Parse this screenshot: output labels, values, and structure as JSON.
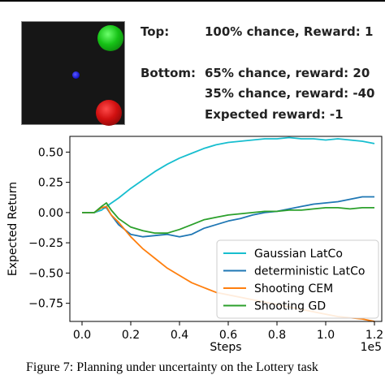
{
  "lottery": {
    "top_label": "Top:",
    "top_desc": "100% chance, Reward: 1",
    "bottom_label": "Bottom:",
    "bottom_line1": "65% chance, reward: 20",
    "bottom_line2": "35% chance, reward: -40",
    "expected": "Expected reward: -1"
  },
  "caption": "Figure 7: Planning under uncertainty on the Lottery task",
  "chart_data": {
    "type": "line",
    "xlabel": "Steps",
    "ylabel": "Expected Return",
    "x_offset_text": "1e5",
    "xlim": [
      -0.05,
      1.23
    ],
    "ylim": [
      -0.9,
      0.63
    ],
    "xticks": [
      0.0,
      0.2,
      0.4,
      0.6,
      0.8,
      1.0,
      1.2
    ],
    "xtick_labels": [
      "0.0",
      "0.2",
      "0.4",
      "0.6",
      "0.8",
      "1.0",
      "1.2"
    ],
    "yticks": [
      0.5,
      0.25,
      0.0,
      -0.25,
      -0.5,
      -0.75
    ],
    "ytick_labels": [
      "0.50",
      "0.25",
      "0.00",
      "−0.25",
      "−0.50",
      "−0.75"
    ],
    "legend_position": "lower-right",
    "grid": false,
    "series": [
      {
        "name": "Gaussian LatCo",
        "color": "#17becf",
        "x": [
          0,
          0.05,
          0.08,
          0.1,
          0.15,
          0.2,
          0.25,
          0.3,
          0.35,
          0.4,
          0.45,
          0.5,
          0.55,
          0.6,
          0.65,
          0.7,
          0.75,
          0.8,
          0.85,
          0.9,
          0.95,
          1.0,
          1.05,
          1.1,
          1.15,
          1.2
        ],
        "y": [
          0,
          0,
          0.02,
          0.05,
          0.12,
          0.2,
          0.27,
          0.34,
          0.4,
          0.45,
          0.49,
          0.53,
          0.56,
          0.58,
          0.59,
          0.6,
          0.61,
          0.61,
          0.62,
          0.61,
          0.61,
          0.6,
          0.61,
          0.6,
          0.59,
          0.57
        ]
      },
      {
        "name": "deterministic LatCo",
        "color": "#1f77b4",
        "x": [
          0,
          0.05,
          0.08,
          0.1,
          0.12,
          0.15,
          0.2,
          0.25,
          0.3,
          0.35,
          0.4,
          0.45,
          0.5,
          0.55,
          0.6,
          0.65,
          0.7,
          0.75,
          0.8,
          0.85,
          0.9,
          0.95,
          1.0,
          1.05,
          1.1,
          1.15,
          1.2
        ],
        "y": [
          0,
          0,
          0.04,
          0.04,
          -0.02,
          -0.1,
          -0.18,
          -0.2,
          -0.19,
          -0.18,
          -0.2,
          -0.18,
          -0.13,
          -0.1,
          -0.07,
          -0.05,
          -0.02,
          0.0,
          0.01,
          0.03,
          0.05,
          0.07,
          0.08,
          0.09,
          0.11,
          0.13,
          0.13
        ]
      },
      {
        "name": "Shooting CEM",
        "color": "#ff7f0e",
        "x": [
          0,
          0.05,
          0.08,
          0.1,
          0.12,
          0.15,
          0.2,
          0.25,
          0.3,
          0.35,
          0.4,
          0.45,
          0.5,
          0.55,
          0.6,
          0.65,
          0.7,
          0.75,
          0.8,
          0.85,
          0.9,
          0.95,
          1.0,
          1.05,
          1.1,
          1.15,
          1.2
        ],
        "y": [
          0,
          0,
          0.04,
          0.05,
          -0.02,
          -0.08,
          -0.2,
          -0.3,
          -0.38,
          -0.46,
          -0.52,
          -0.58,
          -0.62,
          -0.66,
          -0.68,
          -0.7,
          -0.72,
          -0.74,
          -0.76,
          -0.78,
          -0.8,
          -0.82,
          -0.84,
          -0.86,
          -0.87,
          -0.88,
          -0.9
        ]
      },
      {
        "name": "Shooting GD",
        "color": "#2ca02c",
        "x": [
          0,
          0.05,
          0.08,
          0.1,
          0.12,
          0.15,
          0.2,
          0.25,
          0.3,
          0.35,
          0.4,
          0.45,
          0.5,
          0.55,
          0.6,
          0.65,
          0.7,
          0.75,
          0.8,
          0.85,
          0.9,
          0.95,
          1.0,
          1.05,
          1.1,
          1.15,
          1.2
        ],
        "y": [
          0,
          0,
          0.05,
          0.08,
          0.02,
          -0.05,
          -0.12,
          -0.15,
          -0.17,
          -0.17,
          -0.14,
          -0.1,
          -0.06,
          -0.04,
          -0.02,
          -0.01,
          0.0,
          0.01,
          0.01,
          0.02,
          0.02,
          0.03,
          0.04,
          0.04,
          0.03,
          0.04,
          0.04
        ]
      }
    ]
  }
}
